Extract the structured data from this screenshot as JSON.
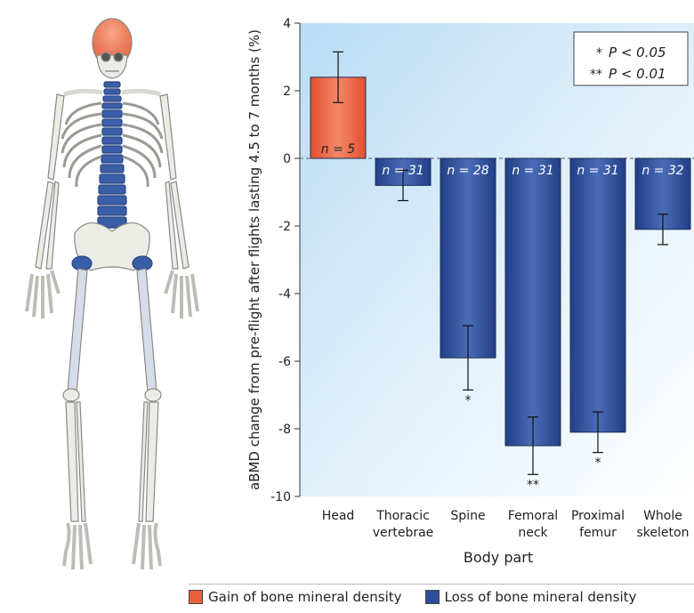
{
  "chart_data": {
    "type": "bar",
    "ylabel": "aBMD change from pre-flight after flights lasting 4.5 to 7 months (%)",
    "xlabel": "Body part",
    "ylim": [
      -10,
      4
    ],
    "yticks": [
      "4",
      "2",
      "0",
      "-2",
      "-4",
      "-6",
      "-8",
      "-10"
    ],
    "ytick_values": [
      4,
      2,
      0,
      -2,
      -4,
      -6,
      -8,
      -10
    ],
    "categories": [
      [
        "Head"
      ],
      [
        "Thoracic",
        "vertebrae"
      ],
      [
        "Spine"
      ],
      [
        "Femoral",
        "neck"
      ],
      [
        "Proximal",
        "femur"
      ],
      [
        "Whole",
        "skeleton"
      ]
    ],
    "values": [
      2.4,
      -0.8,
      -5.9,
      -8.5,
      -8.1,
      -2.1
    ],
    "errors": [
      0.75,
      0.45,
      0.95,
      0.85,
      0.6,
      0.45
    ],
    "n_labels": [
      "n = 5",
      "n = 31",
      "n = 28",
      "n = 31",
      "n = 31",
      "n = 32"
    ],
    "significance": [
      "",
      "",
      "*",
      "**",
      "*",
      ""
    ],
    "bar_kind": [
      "gain",
      "loss",
      "loss",
      "loss",
      "loss",
      "loss"
    ],
    "significance_legend": [
      {
        "stars": "*",
        "text": "P < 0.05"
      },
      {
        "stars": "**",
        "text": "P < 0.01"
      }
    ],
    "legend": [
      {
        "key": "gain",
        "label": "Gain of bone mineral density"
      },
      {
        "key": "loss",
        "label": "Loss of bone mineral density"
      }
    ]
  },
  "colors": {
    "gain": "#e8603c",
    "loss": "#2e4f99",
    "panel": "#dceefb"
  },
  "skeleton_highlights": {
    "gain": "skull",
    "loss": [
      "spine",
      "hips"
    ]
  }
}
